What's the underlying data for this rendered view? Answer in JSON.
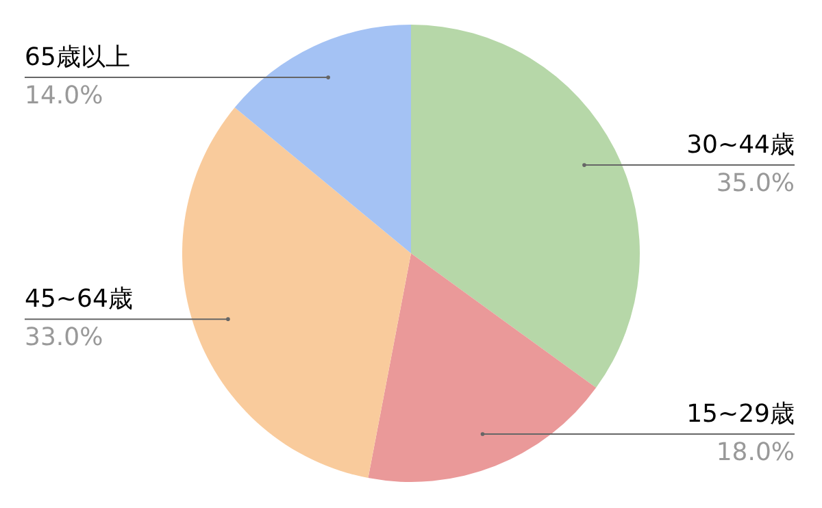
{
  "chart_data": {
    "type": "pie",
    "categories": [
      "30~44歳",
      "15~29歳",
      "45~64歳",
      "65歳以上"
    ],
    "values": [
      35,
      18,
      33,
      14
    ],
    "colors": [
      "#b6d7a8",
      "#ea9999",
      "#f9cb9c",
      "#a4c2f4"
    ],
    "value_labels": [
      "35.0%",
      "18.0%",
      "33.0%",
      "14.0%"
    ]
  }
}
